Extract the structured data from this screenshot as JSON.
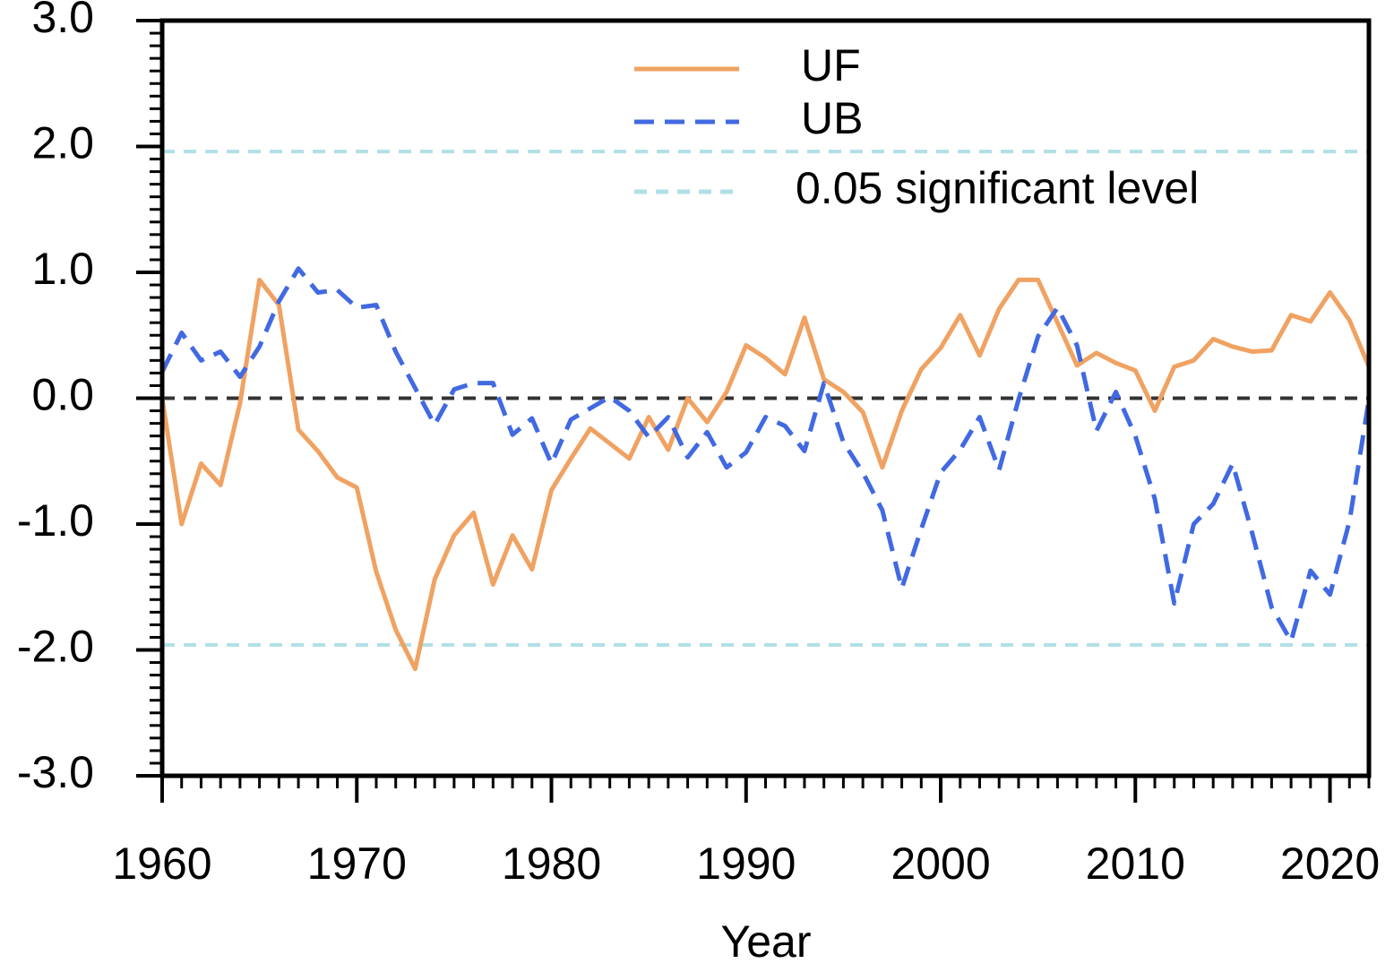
{
  "chart_data": {
    "type": "line",
    "x_label": "Year",
    "x": [
      1960,
      1961,
      1962,
      1963,
      1964,
      1965,
      1966,
      1967,
      1968,
      1969,
      1970,
      1971,
      1972,
      1973,
      1974,
      1975,
      1976,
      1977,
      1978,
      1979,
      1980,
      1981,
      1982,
      1983,
      1984,
      1985,
      1986,
      1987,
      1988,
      1989,
      1990,
      1991,
      1992,
      1993,
      1994,
      1995,
      1996,
      1997,
      1998,
      1999,
      2000,
      2001,
      2002,
      2003,
      2004,
      2005,
      2006,
      2007,
      2008,
      2009,
      2010,
      2011,
      2012,
      2013,
      2014,
      2015,
      2016,
      2017,
      2018,
      2019,
      2020,
      2021,
      2022
    ],
    "series": [
      {
        "name": "UF",
        "color": "#f0a262",
        "dashed": false,
        "values": [
          0.0,
          -1.0,
          -0.52,
          -0.69,
          -0.04,
          0.94,
          0.74,
          -0.25,
          -0.42,
          -0.63,
          -0.71,
          -1.38,
          -1.84,
          -2.15,
          -1.44,
          -1.09,
          -0.91,
          -1.48,
          -1.09,
          -1.36,
          -0.73,
          -0.48,
          -0.24,
          -0.36,
          -0.48,
          -0.15,
          -0.41,
          0.0,
          -0.19,
          0.05,
          0.42,
          0.32,
          0.19,
          0.64,
          0.15,
          0.05,
          -0.11,
          -0.55,
          -0.1,
          0.23,
          0.4,
          0.66,
          0.34,
          0.71,
          0.94,
          0.94,
          0.6,
          0.26,
          0.36,
          0.28,
          0.22,
          -0.1,
          0.25,
          0.3,
          0.47,
          0.41,
          0.37,
          0.38,
          0.66,
          0.61,
          0.84,
          0.62,
          0.25
        ]
      },
      {
        "name": "UB",
        "color": "#4169e1",
        "dashed": true,
        "values": [
          0.21,
          0.52,
          0.3,
          0.37,
          0.17,
          0.41,
          0.77,
          1.03,
          0.84,
          0.86,
          0.72,
          0.74,
          0.37,
          0.08,
          -0.21,
          0.07,
          0.12,
          0.12,
          -0.29,
          -0.16,
          -0.52,
          -0.17,
          -0.08,
          0.01,
          -0.1,
          -0.31,
          -0.15,
          -0.47,
          -0.27,
          -0.55,
          -0.43,
          -0.15,
          -0.22,
          -0.42,
          0.12,
          -0.35,
          -0.59,
          -0.89,
          -1.51,
          -1.04,
          -0.59,
          -0.41,
          -0.15,
          -0.57,
          -0.01,
          0.49,
          0.72,
          0.42,
          -0.26,
          0.05,
          -0.3,
          -0.8,
          -1.63,
          -1.0,
          -0.84,
          -0.52,
          -1.07,
          -1.66,
          -1.93,
          -1.37,
          -1.56,
          -0.98,
          -0.01
        ]
      }
    ],
    "significance": {
      "name": "0.05 significant level",
      "color": "#b0e0e6",
      "values": [
        1.96,
        -1.96
      ]
    },
    "baseline": {
      "value": 0,
      "color": "#333333"
    },
    "xlim": [
      1960,
      2022
    ],
    "xticks": [
      1960,
      1970,
      1980,
      1990,
      2000,
      2010,
      2020
    ],
    "ylim": [
      -3,
      3
    ],
    "yticks": [
      {
        "value": -3,
        "label": "-3.0"
      },
      {
        "value": -2,
        "label": "-2.0"
      },
      {
        "value": -1,
        "label": "-1.0"
      },
      {
        "value": 0,
        "label": "0.0"
      },
      {
        "value": 1,
        "label": "1.0"
      },
      {
        "value": 2,
        "label": "2.0"
      },
      {
        "value": 3,
        "label": "3.0"
      }
    ],
    "legend": "top-right",
    "grid": false
  }
}
